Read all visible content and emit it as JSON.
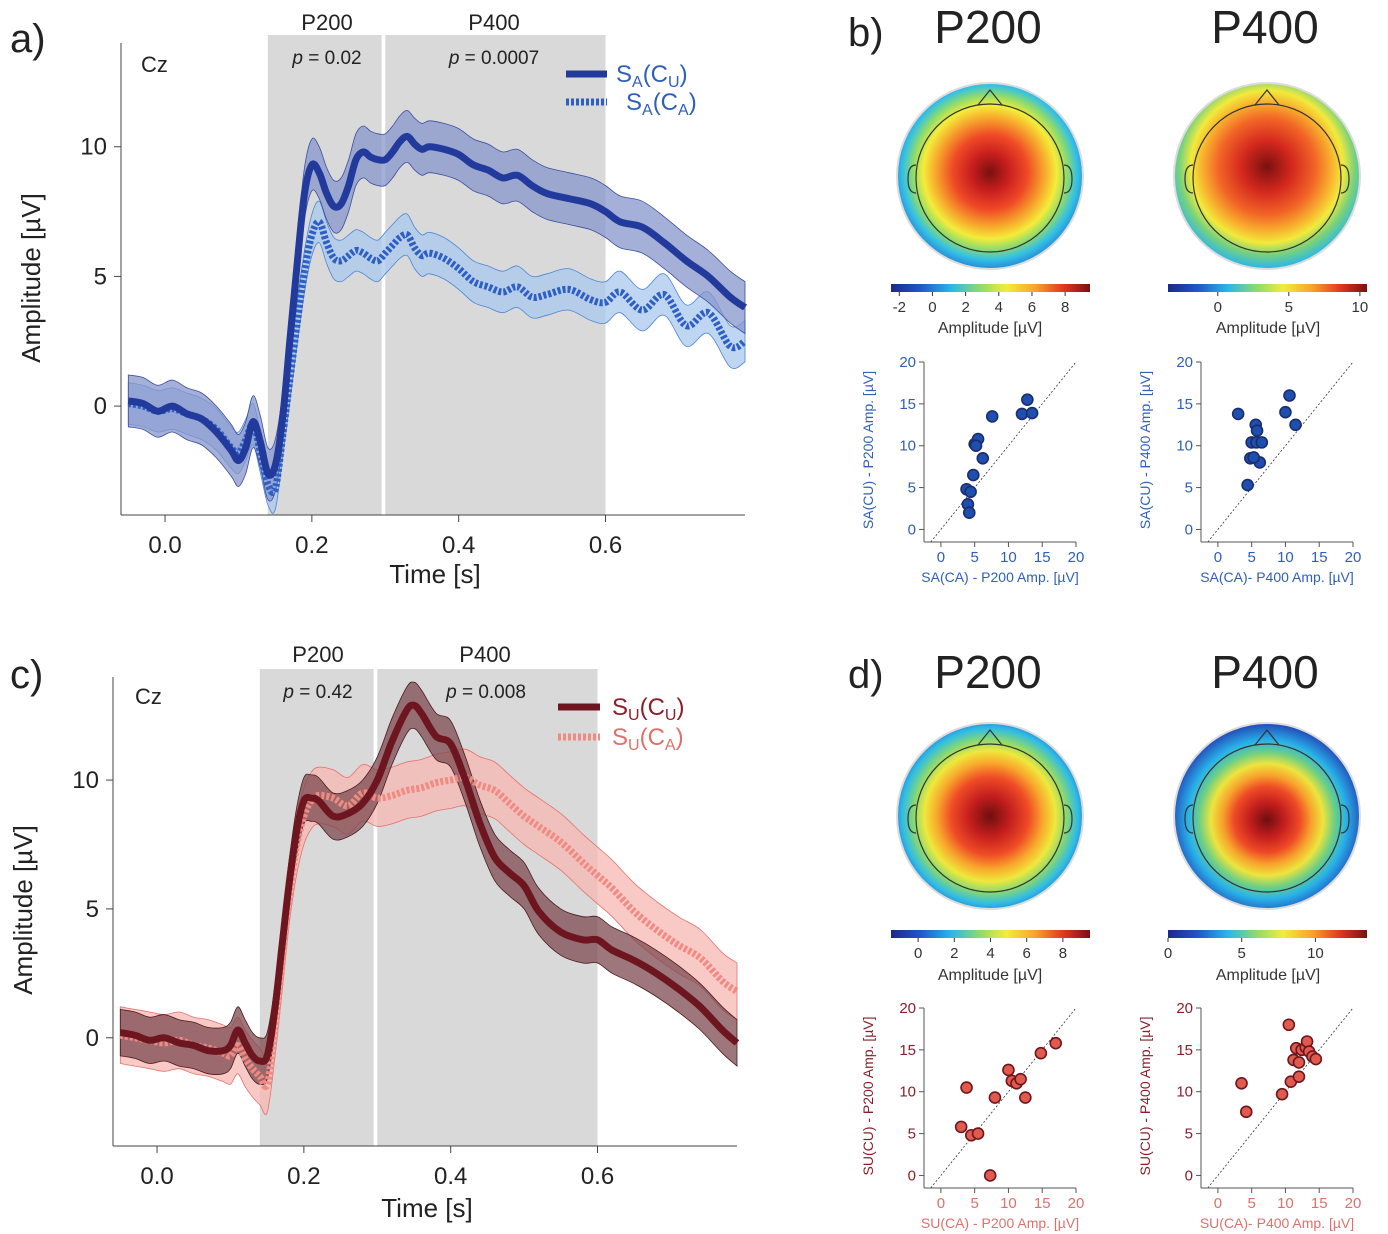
{
  "panel_labels": [
    "a)",
    "b)",
    "c)",
    "d)"
  ],
  "panels": {
    "a": {
      "electrode": "Cz",
      "xlabel": "Time [s]",
      "ylabel": "Amplitude [µV]",
      "windows": [
        {
          "name": "P200",
          "p_prefix": "p",
          "p_suffix": " = 0.02"
        },
        {
          "name": "P400",
          "p_prefix": "p",
          "p_suffix": " = 0.0007"
        }
      ],
      "legend": [
        {
          "main": "S",
          "sub1": "A",
          "mid": "(C",
          "sub2": "U",
          "close": ")"
        },
        {
          "main": "S",
          "sub1": "A",
          "mid": "(C",
          "sub2": "A",
          "close": ")"
        }
      ]
    },
    "c": {
      "electrode": "Cz",
      "xlabel": "Time [s]",
      "ylabel": "Amplitude [µV]",
      "windows": [
        {
          "name": "P200",
          "p_prefix": "p",
          "p_suffix": " = 0.42"
        },
        {
          "name": "P400",
          "p_prefix": "p",
          "p_suffix": " = 0.008"
        }
      ],
      "legend": [
        {
          "main": "S",
          "sub1": "U",
          "mid": "(C",
          "sub2": "U",
          "close": ")"
        },
        {
          "main": "S",
          "sub1": "U",
          "mid": "(C",
          "sub2": "A",
          "close": ")"
        }
      ]
    },
    "b": {
      "topo_titles": [
        "P200",
        "P400"
      ],
      "colorbar_label": "Amplitude [µV]",
      "colorbar_ticks": [
        [
          "-2",
          "0",
          "2",
          "4",
          "6",
          "8"
        ],
        [
          "0",
          "5",
          "10"
        ]
      ],
      "scatter_ylabels": [
        "SA(CU) - P200 Amp. [µV]",
        "SA(CU) - P400 Amp. [µV]"
      ],
      "scatter_xlabels": [
        "SA(CA) - P200 Amp. [µV]",
        "SA(CA)- P400 Amp. [µV]"
      ]
    },
    "d": {
      "topo_titles": [
        "P200",
        "P400"
      ],
      "colorbar_label": "Amplitude [µV]",
      "colorbar_ticks": [
        [
          "0",
          "2",
          "4",
          "6",
          "8"
        ],
        [
          "0",
          "5",
          "10"
        ]
      ],
      "scatter_ylabels": [
        "SU(CU) - P200 Amp. [µV]",
        "SU(CU) - P400 Amp. [µV]"
      ],
      "scatter_xlabels": [
        "SU(CA) - P200 Amp. [µV]",
        "SU(CA)- P400 Amp. [µV]"
      ]
    }
  },
  "colors": {
    "blue_dark": "#223a9c",
    "blue_band_dark": "#8796cc",
    "blue_light": "#2e5fc4",
    "blue_band_light": "#a9c8ee",
    "blue_label": "#2f5fb8",
    "red_dark": "#6e1620",
    "red_band_dark": "#7d4a50",
    "red_light": "#f08a82",
    "red_band_light": "#f6b7b2",
    "red_label": "#8b1e2a",
    "red_xlabel": "#e0706a",
    "window_gray": "#d9d9d9",
    "marker_blue": "#1f4fae",
    "marker_red": "#e05a4e"
  },
  "chart_data": [
    {
      "id": "a",
      "type": "line",
      "xlabel": "Time [s]",
      "ylabel": "Amplitude [µV]",
      "xlim": [
        -0.06,
        0.79
      ],
      "ylim": [
        -4.2,
        14
      ],
      "xticks": [
        0.0,
        0.2,
        0.4,
        0.6
      ],
      "yticks": [
        0,
        5,
        10
      ],
      "windows_s": [
        [
          0.14,
          0.295
        ],
        [
          0.3,
          0.6
        ]
      ],
      "series": [
        {
          "name": "SA(CU)",
          "style": "solid",
          "x": [
            -0.05,
            -0.03,
            -0.01,
            0.01,
            0.03,
            0.05,
            0.07,
            0.09,
            0.1,
            0.11,
            0.12,
            0.13,
            0.14,
            0.15,
            0.16,
            0.17,
            0.18,
            0.19,
            0.2,
            0.21,
            0.22,
            0.23,
            0.24,
            0.25,
            0.26,
            0.27,
            0.28,
            0.29,
            0.3,
            0.31,
            0.32,
            0.33,
            0.34,
            0.35,
            0.36,
            0.38,
            0.4,
            0.42,
            0.44,
            0.46,
            0.48,
            0.5,
            0.52,
            0.55,
            0.58,
            0.6,
            0.62,
            0.65,
            0.68,
            0.71,
            0.74,
            0.77,
            0.79
          ],
          "y": [
            0.2,
            0.1,
            -0.2,
            0.0,
            -0.3,
            -0.5,
            -1.0,
            -1.7,
            -2.1,
            -1.6,
            -0.6,
            -1.4,
            -2.6,
            -2.3,
            -0.5,
            2.5,
            5.5,
            8.2,
            9.3,
            9.0,
            8.2,
            7.7,
            7.8,
            8.5,
            9.5,
            9.8,
            9.6,
            9.5,
            9.5,
            9.8,
            10.2,
            10.4,
            10.1,
            9.9,
            10.0,
            9.9,
            9.7,
            9.3,
            9.1,
            8.8,
            8.9,
            8.5,
            8.2,
            8.0,
            7.8,
            7.5,
            7.1,
            6.9,
            6.3,
            5.6,
            5.0,
            4.2,
            3.8
          ],
          "band": 1.0
        },
        {
          "name": "SA(CA)",
          "style": "dotted",
          "x": [
            -0.05,
            -0.03,
            -0.01,
            0.01,
            0.03,
            0.05,
            0.07,
            0.09,
            0.1,
            0.11,
            0.12,
            0.13,
            0.14,
            0.15,
            0.16,
            0.17,
            0.18,
            0.19,
            0.2,
            0.21,
            0.22,
            0.23,
            0.24,
            0.25,
            0.26,
            0.27,
            0.28,
            0.29,
            0.3,
            0.31,
            0.32,
            0.33,
            0.34,
            0.35,
            0.36,
            0.38,
            0.4,
            0.42,
            0.44,
            0.46,
            0.48,
            0.5,
            0.52,
            0.55,
            0.58,
            0.6,
            0.62,
            0.65,
            0.68,
            0.71,
            0.74,
            0.77,
            0.79
          ],
          "y": [
            0.1,
            0.0,
            -0.2,
            -0.1,
            -0.3,
            -0.5,
            -0.9,
            -1.6,
            -1.8,
            -1.3,
            -0.7,
            -1.8,
            -3.0,
            -3.2,
            -1.2,
            1.0,
            3.2,
            5.2,
            6.6,
            7.1,
            6.3,
            5.7,
            5.6,
            5.8,
            6.0,
            5.9,
            5.7,
            5.6,
            5.9,
            6.2,
            6.5,
            6.6,
            6.1,
            5.8,
            5.9,
            5.7,
            5.3,
            4.8,
            4.6,
            4.4,
            4.6,
            4.2,
            4.3,
            4.5,
            4.1,
            4.0,
            4.4,
            3.7,
            4.3,
            3.1,
            3.6,
            2.3,
            2.5
          ],
          "band": 0.8
        }
      ]
    },
    {
      "id": "c",
      "type": "line",
      "xlabel": "Time [s]",
      "ylabel": "Amplitude [µV]",
      "xlim": [
        -0.06,
        0.79
      ],
      "ylim": [
        -4.2,
        14
      ],
      "xticks": [
        0.0,
        0.2,
        0.4,
        0.6
      ],
      "yticks": [
        0,
        5,
        10
      ],
      "windows_s": [
        [
          0.14,
          0.295
        ],
        [
          0.3,
          0.6
        ]
      ],
      "series": [
        {
          "name": "SU(CU)",
          "style": "solid",
          "x": [
            -0.05,
            -0.03,
            -0.01,
            0.01,
            0.03,
            0.05,
            0.07,
            0.09,
            0.1,
            0.11,
            0.12,
            0.13,
            0.14,
            0.15,
            0.16,
            0.17,
            0.18,
            0.19,
            0.2,
            0.21,
            0.22,
            0.24,
            0.26,
            0.28,
            0.3,
            0.32,
            0.34,
            0.35,
            0.36,
            0.38,
            0.4,
            0.42,
            0.44,
            0.46,
            0.48,
            0.5,
            0.52,
            0.55,
            0.58,
            0.6,
            0.62,
            0.65,
            0.68,
            0.71,
            0.74,
            0.77,
            0.79
          ],
          "y": [
            0.2,
            0.1,
            -0.1,
            0.0,
            -0.2,
            -0.3,
            -0.5,
            -0.5,
            -0.3,
            0.3,
            -0.2,
            -0.7,
            -0.9,
            -0.7,
            1.0,
            3.5,
            6.0,
            8.0,
            9.2,
            9.3,
            9.2,
            8.6,
            8.7,
            9.1,
            10.0,
            11.5,
            12.7,
            12.9,
            12.6,
            11.7,
            11.4,
            10.0,
            8.3,
            7.0,
            6.4,
            5.9,
            4.9,
            4.1,
            3.8,
            3.8,
            3.4,
            3.0,
            2.5,
            1.9,
            1.2,
            0.3,
            -0.2
          ],
          "band": 0.9
        },
        {
          "name": "SU(CA)",
          "style": "dotted",
          "x": [
            -0.05,
            -0.03,
            -0.01,
            0.01,
            0.03,
            0.05,
            0.07,
            0.09,
            0.1,
            0.11,
            0.12,
            0.13,
            0.14,
            0.15,
            0.16,
            0.17,
            0.18,
            0.19,
            0.2,
            0.21,
            0.22,
            0.24,
            0.26,
            0.28,
            0.3,
            0.32,
            0.34,
            0.36,
            0.38,
            0.4,
            0.42,
            0.44,
            0.46,
            0.48,
            0.5,
            0.52,
            0.55,
            0.58,
            0.6,
            0.62,
            0.65,
            0.68,
            0.71,
            0.74,
            0.77,
            0.79
          ],
          "y": [
            0.1,
            0.0,
            -0.1,
            -0.2,
            -0.1,
            -0.3,
            -0.4,
            -0.6,
            -0.7,
            -0.3,
            -0.8,
            -1.2,
            -1.5,
            -1.8,
            0.2,
            2.8,
            5.5,
            7.4,
            8.6,
            9.2,
            9.4,
            9.3,
            9.0,
            9.5,
            9.3,
            9.4,
            9.6,
            9.7,
            9.9,
            10.0,
            10.1,
            9.8,
            9.6,
            9.1,
            8.6,
            8.2,
            7.6,
            6.8,
            6.3,
            5.8,
            4.9,
            4.2,
            3.6,
            3.1,
            2.2,
            1.8
          ],
          "band": 1.1
        }
      ]
    },
    {
      "id": "b-P200",
      "type": "scatter",
      "xlabel": "SA(CA) - P200 Amp. [µV]",
      "ylabel": "SA(CU) - P200 Amp. [µV]",
      "xlim": [
        -2.5,
        20
      ],
      "ylim": [
        -1.5,
        20
      ],
      "ticks": [
        0,
        5,
        10,
        15,
        20
      ],
      "x": [
        3.8,
        4.0,
        4.2,
        4.4,
        4.8,
        5.0,
        5.5,
        5.2,
        6.2,
        7.6,
        12.0,
        12.8,
        13.5
      ],
      "y": [
        4.8,
        3.0,
        2.0,
        4.5,
        6.5,
        10.2,
        10.8,
        10.0,
        8.5,
        13.5,
        13.8,
        15.5,
        13.9
      ]
    },
    {
      "id": "b-P400",
      "type": "scatter",
      "xlabel": "SA(CA)- P400 Amp. [µV]",
      "ylabel": "SA(CU) - P400 Amp. [µV]",
      "xlim": [
        -2.5,
        20
      ],
      "ylim": [
        -1.5,
        20
      ],
      "ticks": [
        0,
        5,
        10,
        15,
        20
      ],
      "x": [
        3.0,
        4.4,
        4.8,
        5.0,
        5.6,
        5.8,
        5.7,
        6.2,
        6.5,
        5.3,
        10.0,
        10.6,
        11.5
      ],
      "y": [
        13.8,
        5.3,
        8.5,
        10.4,
        12.5,
        11.8,
        10.4,
        8.0,
        10.4,
        8.6,
        14.0,
        16.0,
        12.5
      ]
    },
    {
      "id": "d-P200",
      "type": "scatter",
      "xlabel": "SU(CA) - P200 Amp. [µV]",
      "ylabel": "SU(CU) - P200 Amp. [µV]",
      "xlim": [
        -2.5,
        20
      ],
      "ylim": [
        -1.5,
        20
      ],
      "ticks": [
        0,
        5,
        10,
        15,
        20
      ],
      "x": [
        3.0,
        3.8,
        4.5,
        5.5,
        7.3,
        8.0,
        10.0,
        10.5,
        11.2,
        11.8,
        12.5,
        14.8,
        17.0
      ],
      "y": [
        5.8,
        10.5,
        4.8,
        5.0,
        0.0,
        9.3,
        12.6,
        11.3,
        11.0,
        11.5,
        9.3,
        14.6,
        15.8
      ]
    },
    {
      "id": "d-P400",
      "type": "scatter",
      "xlabel": "SU(CA)- P400 Amp. [µV]",
      "ylabel": "SU(CU) - P400 Amp. [µV]",
      "xlim": [
        -2.5,
        20
      ],
      "ylim": [
        -1.5,
        20
      ],
      "ticks": [
        0,
        5,
        10,
        15,
        20
      ],
      "x": [
        3.5,
        4.2,
        9.5,
        10.5,
        10.8,
        11.2,
        11.6,
        12.0,
        12.0,
        12.4,
        13.0,
        13.2,
        13.5,
        14.0,
        14.5
      ],
      "y": [
        11.0,
        7.6,
        9.7,
        18.0,
        11.2,
        13.8,
        15.2,
        13.5,
        11.8,
        15.0,
        15.3,
        16.0,
        14.8,
        14.2,
        13.9
      ]
    }
  ]
}
